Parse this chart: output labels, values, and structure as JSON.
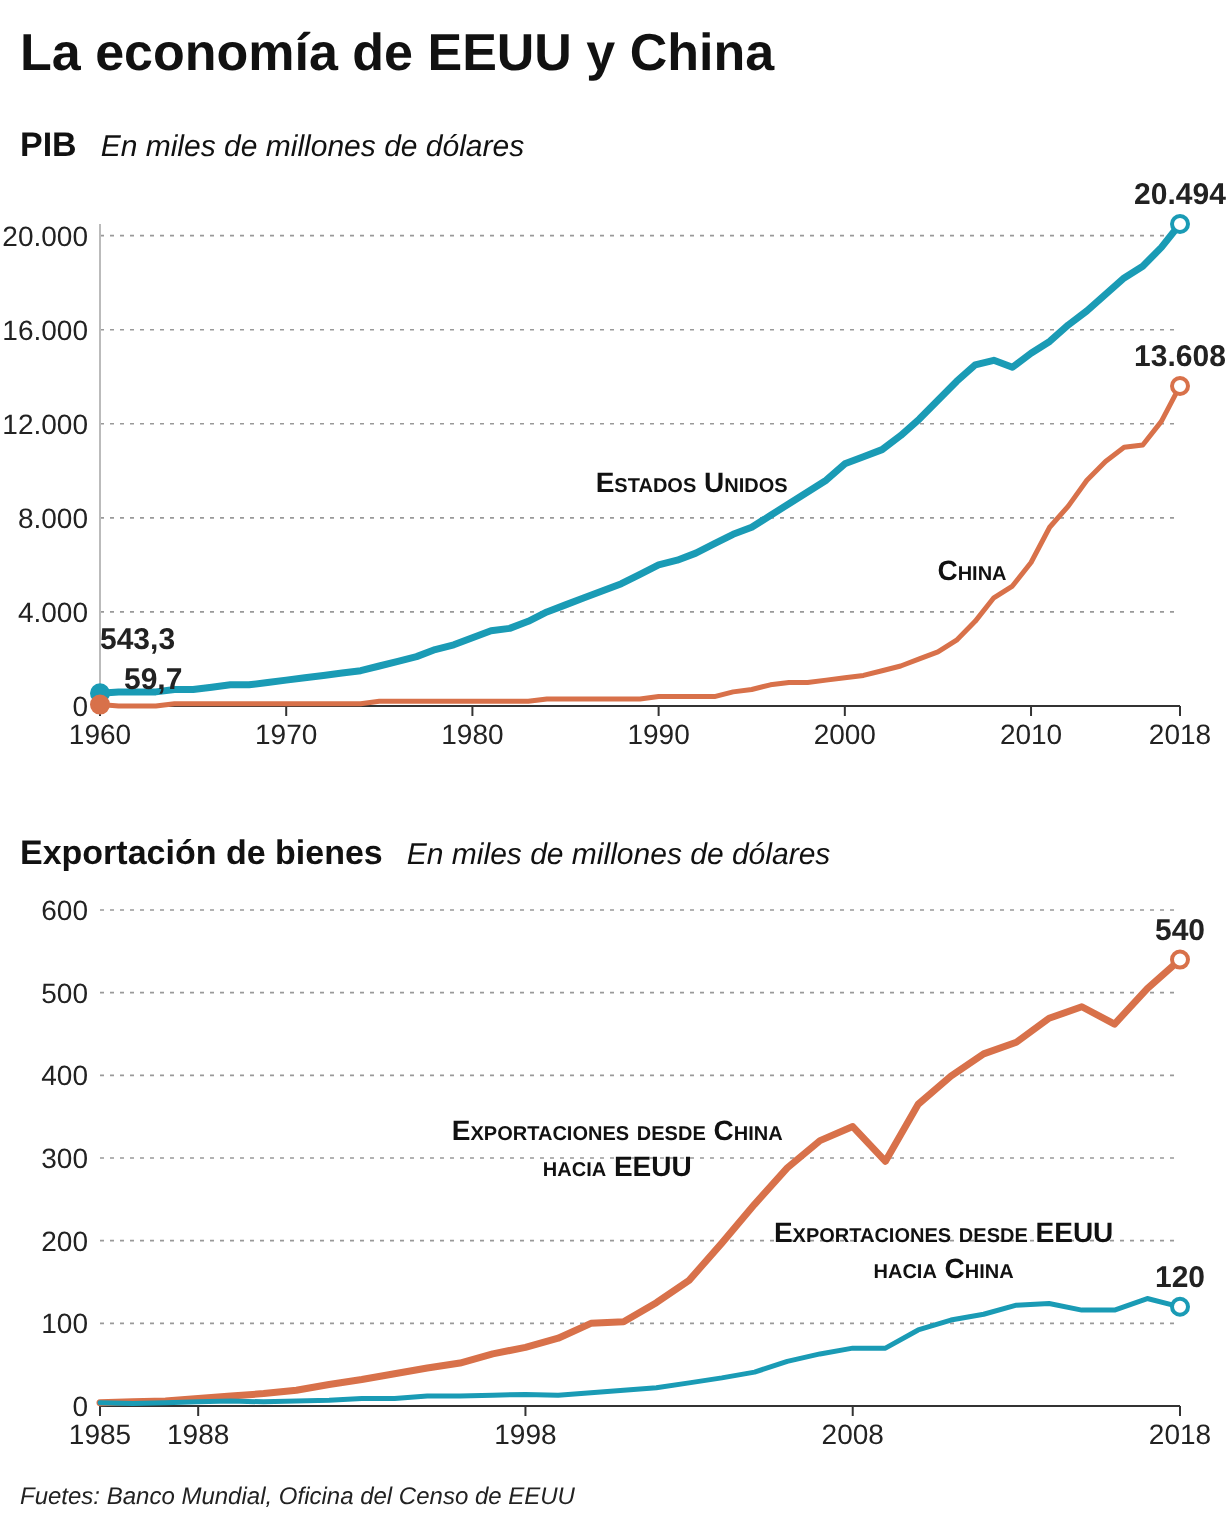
{
  "chart_data": [
    {
      "type": "line",
      "title": "PIB",
      "subtitle": "En miles de millones de dólares",
      "annotations": [
        "La economía de EEUU y China"
      ],
      "x": [
        1960,
        1961,
        1962,
        1963,
        1964,
        1965,
        1966,
        1967,
        1968,
        1969,
        1970,
        1971,
        1972,
        1973,
        1974,
        1975,
        1976,
        1977,
        1978,
        1979,
        1980,
        1981,
        1982,
        1983,
        1984,
        1985,
        1986,
        1987,
        1988,
        1989,
        1990,
        1991,
        1992,
        1993,
        1994,
        1995,
        1996,
        1997,
        1998,
        1999,
        2000,
        2001,
        2002,
        2003,
        2004,
        2005,
        2006,
        2007,
        2008,
        2009,
        2010,
        2011,
        2012,
        2013,
        2014,
        2015,
        2016,
        2017,
        2018
      ],
      "xlim": [
        1960,
        2018
      ],
      "xticks": [
        1960,
        1970,
        1980,
        1990,
        2000,
        2010,
        2018
      ],
      "ylim": [
        0,
        20494
      ],
      "yticks": [
        {
          "value": 0,
          "label": "0"
        },
        {
          "value": 4000,
          "label": "4.000"
        },
        {
          "value": 8000,
          "label": "8.000"
        },
        {
          "value": 12000,
          "label": "12.000"
        },
        {
          "value": 16000,
          "label": "16.000"
        },
        {
          "value": 20000,
          "label": "20.000"
        }
      ],
      "grid": "y",
      "series": [
        {
          "name": "Estados Unidos",
          "color": "#1a9bb5",
          "values": [
            543.3,
            600,
            600,
            600,
            700,
            700,
            800,
            900,
            900,
            1000,
            1100,
            1200,
            1300,
            1400,
            1500,
            1700,
            1900,
            2100,
            2400,
            2600,
            2900,
            3200,
            3300,
            3600,
            4000,
            4300,
            4600,
            4900,
            5200,
            5600,
            6000,
            6200,
            6500,
            6900,
            7300,
            7600,
            8100,
            8600,
            9100,
            9600,
            10300,
            10600,
            10900,
            11500,
            12200,
            13000,
            13800,
            14500,
            14700,
            14400,
            15000,
            15500,
            16200,
            16800,
            17500,
            18200,
            18700,
            19500,
            20494
          ],
          "value_labels": [
            "543,3",
            null,
            null,
            null,
            null,
            null,
            null,
            null,
            null,
            null,
            null,
            null,
            null,
            null,
            null,
            null,
            null,
            null,
            null,
            null,
            null,
            null,
            null,
            null,
            null,
            null,
            null,
            null,
            null,
            null,
            null,
            null,
            null,
            null,
            null,
            null,
            null,
            null,
            null,
            null,
            null,
            null,
            null,
            null,
            null,
            null,
            null,
            null,
            null,
            null,
            null,
            null,
            null,
            null,
            null,
            null,
            null,
            null,
            "20.494"
          ]
        },
        {
          "name": "China",
          "color": "#d8714a",
          "values": [
            59.7,
            0,
            0,
            0,
            100,
            100,
            100,
            100,
            100,
            100,
            100,
            100,
            100,
            100,
            100,
            200,
            200,
            200,
            200,
            200,
            200,
            200,
            200,
            200,
            300,
            300,
            300,
            300,
            300,
            300,
            400,
            400,
            400,
            400,
            600,
            700,
            900,
            1000,
            1000,
            1100,
            1200,
            1300,
            1500,
            1700,
            2000,
            2300,
            2800,
            3600,
            4600,
            5100,
            6100,
            7600,
            8500,
            9600,
            10400,
            11000,
            11100,
            12100,
            13608
          ],
          "value_labels": [
            "59,7",
            null,
            null,
            null,
            null,
            null,
            null,
            null,
            null,
            null,
            null,
            null,
            null,
            null,
            null,
            null,
            null,
            null,
            null,
            null,
            null,
            null,
            null,
            null,
            null,
            null,
            null,
            null,
            null,
            null,
            null,
            null,
            null,
            null,
            null,
            null,
            null,
            null,
            null,
            null,
            null,
            null,
            null,
            null,
            null,
            null,
            null,
            null,
            null,
            null,
            null,
            null,
            null,
            null,
            null,
            null,
            null,
            null,
            "13.608"
          ]
        }
      ]
    },
    {
      "type": "line",
      "title": "Exportación de bienes",
      "subtitle": "En miles de millones de dólares",
      "annotations": [
        "Fuetes: Banco Mundial, Oficina del Censo de EEUU"
      ],
      "x": [
        1985,
        1986,
        1987,
        1988,
        1989,
        1990,
        1991,
        1992,
        1993,
        1994,
        1995,
        1996,
        1997,
        1998,
        1999,
        2000,
        2001,
        2002,
        2003,
        2004,
        2005,
        2006,
        2007,
        2008,
        2009,
        2010,
        2011,
        2012,
        2013,
        2014,
        2015,
        2016,
        2017,
        2018
      ],
      "xlim": [
        1985,
        2018
      ],
      "xticks": [
        1985,
        1988,
        1998,
        2008,
        2018
      ],
      "ylim": [
        0,
        600
      ],
      "yticks": [
        0,
        100,
        200,
        300,
        400,
        500,
        600
      ],
      "grid": "y",
      "series": [
        {
          "name": "Exportaciones desde China hacia EEUU",
          "color": "#d8714a",
          "values": [
            4,
            5,
            6,
            9,
            12,
            15,
            19,
            26,
            32,
            39,
            46,
            52,
            63,
            71,
            82,
            100,
            102,
            125,
            152,
            197,
            244,
            288,
            321,
            338,
            296,
            365,
            399,
            426,
            440,
            469,
            483,
            462,
            505,
            540
          ],
          "value_labels": [
            null,
            null,
            null,
            null,
            null,
            null,
            null,
            null,
            null,
            null,
            null,
            null,
            null,
            null,
            null,
            null,
            null,
            null,
            null,
            null,
            null,
            null,
            null,
            null,
            null,
            null,
            null,
            null,
            null,
            null,
            null,
            null,
            null,
            "540"
          ]
        },
        {
          "name": "Exportaciones desde EEUU hacia China",
          "color": "#1a9bb5",
          "values": [
            4,
            3,
            4,
            5,
            6,
            5,
            6,
            7,
            9,
            9,
            12,
            12,
            13,
            14,
            13,
            16,
            19,
            22,
            28,
            34,
            41,
            54,
            63,
            70,
            70,
            92,
            104,
            111,
            122,
            124,
            116,
            116,
            130,
            120
          ],
          "value_labels": [
            null,
            null,
            null,
            null,
            null,
            null,
            null,
            null,
            null,
            null,
            null,
            null,
            null,
            null,
            null,
            null,
            null,
            null,
            null,
            null,
            null,
            null,
            null,
            null,
            null,
            null,
            null,
            null,
            null,
            null,
            null,
            null,
            null,
            "120"
          ]
        }
      ]
    }
  ]
}
